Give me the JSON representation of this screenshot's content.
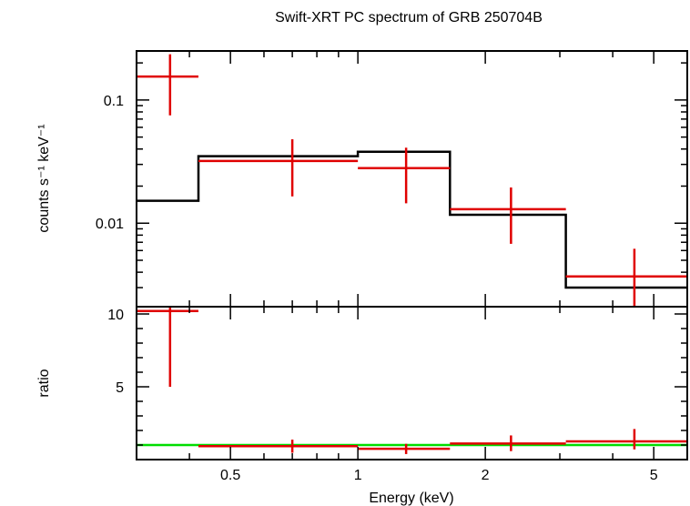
{
  "chart_data": [
    {
      "type": "step",
      "title": "Swift-XRT PC spectrum of GRB 250704B",
      "ylabel": "counts s⁻¹ keV⁻¹",
      "xscale": "log",
      "yscale": "log",
      "xlim": [
        0.3,
        6.0
      ],
      "ylim": [
        0.0021,
        0.25
      ],
      "yticks": [
        {
          "v": 0.1,
          "label": "0.1"
        },
        {
          "v": 0.01,
          "label": "0.01"
        }
      ],
      "model_step": {
        "color": "#000000",
        "edges": [
          0.3,
          0.42,
          1.0,
          1.65,
          3.1,
          6.0
        ],
        "values": [
          0.0152,
          0.035,
          0.038,
          0.0117,
          0.003
        ]
      },
      "data_points": {
        "color": "#e00000",
        "points": [
          {
            "x": 0.36,
            "xlo": 0.3,
            "xhi": 0.42,
            "y": 0.155,
            "ylo": 0.075,
            "yhi": 0.235
          },
          {
            "x": 0.7,
            "xlo": 0.42,
            "xhi": 1.0,
            "y": 0.032,
            "ylo": 0.0165,
            "yhi": 0.048
          },
          {
            "x": 1.3,
            "xlo": 1.0,
            "xhi": 1.65,
            "y": 0.028,
            "ylo": 0.0145,
            "yhi": 0.041
          },
          {
            "x": 2.3,
            "xlo": 1.65,
            "xhi": 3.1,
            "y": 0.013,
            "ylo": 0.0068,
            "yhi": 0.0195
          },
          {
            "x": 4.5,
            "xlo": 3.1,
            "xhi": 6.0,
            "y": 0.0037,
            "ylo": 0.0021,
            "yhi": 0.0062
          }
        ]
      }
    },
    {
      "type": "scatter",
      "ylabel": "ratio",
      "xlabel": "Energy (keV)",
      "xscale": "log",
      "xlim": [
        0.3,
        6.0
      ],
      "ylim": [
        0.0,
        10.5
      ],
      "yticks": [
        {
          "v": 5,
          "label": "5"
        },
        {
          "v": 10,
          "label": "10"
        }
      ],
      "xticks": [
        {
          "v": 0.5,
          "label": "0.5"
        },
        {
          "v": 1,
          "label": "1"
        },
        {
          "v": 2,
          "label": "2"
        },
        {
          "v": 5,
          "label": "5"
        }
      ],
      "reference_line": {
        "y": 1,
        "color": "#00dd00"
      },
      "data_points": {
        "color": "#e00000",
        "points": [
          {
            "x": 0.36,
            "xlo": 0.3,
            "xhi": 0.42,
            "y": 10.2,
            "ylo": 5.0,
            "yhi": 10.5
          },
          {
            "x": 0.7,
            "xlo": 0.42,
            "xhi": 1.0,
            "y": 0.92,
            "ylo": 0.47,
            "yhi": 1.37
          },
          {
            "x": 1.3,
            "xlo": 1.0,
            "xhi": 1.65,
            "y": 0.74,
            "ylo": 0.38,
            "yhi": 1.08
          },
          {
            "x": 2.3,
            "xlo": 1.65,
            "xhi": 3.1,
            "y": 1.1,
            "ylo": 0.58,
            "yhi": 1.66
          },
          {
            "x": 4.5,
            "xlo": 3.1,
            "xhi": 6.0,
            "y": 1.25,
            "ylo": 0.7,
            "yhi": 2.1
          }
        ]
      }
    }
  ]
}
